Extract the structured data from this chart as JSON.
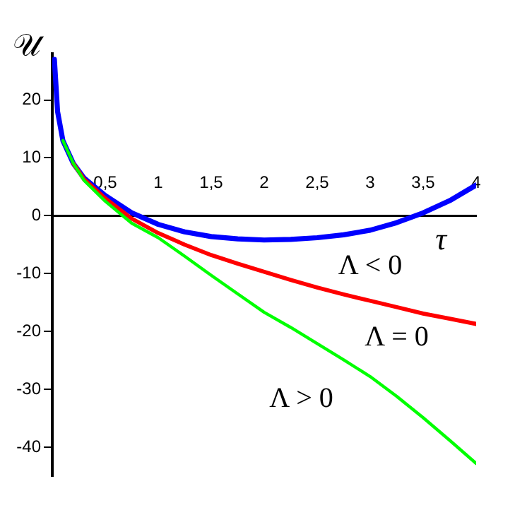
{
  "chart_data": {
    "type": "line",
    "xlabel": "τ",
    "ylabel": "𝒰",
    "x": [
      0.02,
      0.05,
      0.1,
      0.2,
      0.3,
      0.5,
      0.75,
      1,
      1.25,
      1.5,
      1.75,
      2,
      2.25,
      2.5,
      2.75,
      3,
      3.25,
      3.5,
      3.75,
      4
    ],
    "series": [
      {
        "name": "Λ < 0",
        "color": "#0000ff",
        "values": [
          27,
          18,
          13,
          9,
          6.5,
          3.5,
          0.5,
          -1.5,
          -2.8,
          -3.6,
          -4.0,
          -4.2,
          -4.1,
          -3.8,
          -3.3,
          -2.5,
          -1.2,
          0.5,
          2.6,
          5.3
        ]
      },
      {
        "name": "Λ = 0",
        "color": "#ff0000",
        "x": [
          0.2,
          0.3,
          0.5,
          0.75,
          1,
          1.25,
          1.5,
          1.75,
          2,
          2.25,
          2.5,
          2.75,
          3,
          3.25,
          3.5,
          3.75,
          4
        ],
        "values": [
          9,
          6.3,
          3.0,
          -0.5,
          -3.0,
          -5.0,
          -6.8,
          -8.3,
          -9.7,
          -11.1,
          -12.4,
          -13.6,
          -14.7,
          -15.8,
          -16.9,
          -17.8,
          -18.7
        ]
      },
      {
        "name": "Λ > 0",
        "color": "#00ff00",
        "x": [
          0.1,
          0.2,
          0.3,
          0.5,
          0.75,
          1,
          1.25,
          1.5,
          1.75,
          2,
          2.25,
          2.5,
          2.75,
          3,
          3.25,
          3.5,
          3.75,
          4
        ],
        "values": [
          13,
          9,
          6.1,
          2.5,
          -1.3,
          -3.8,
          -7.0,
          -10.3,
          -13.5,
          -16.7,
          -19.3,
          -22.1,
          -24.9,
          -27.8,
          -31.2,
          -34.9,
          -38.8,
          -42.8
        ]
      }
    ],
    "xlim": [
      0,
      4
    ],
    "ylim": [
      -45,
      28
    ],
    "xticks": [
      {
        "value": 0.5,
        "label": "0,5"
      },
      1,
      {
        "value": 1.5,
        "label": "1,5"
      },
      2,
      {
        "value": 2.5,
        "label": "2,5"
      },
      3,
      {
        "value": 3.5,
        "label": "3,5"
      },
      4
    ],
    "yticks": [
      -40,
      -30,
      -20,
      -10,
      0,
      10,
      20
    ],
    "grid": false,
    "legend": false,
    "marker": "none",
    "line_style": "solid"
  }
}
